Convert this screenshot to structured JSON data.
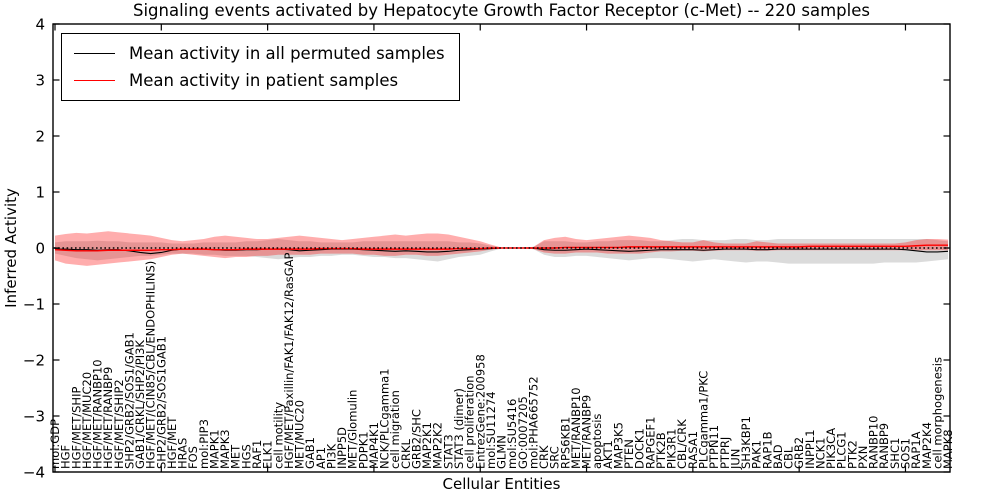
{
  "title": "Signaling events activated by Hepatocyte Growth Factor Receptor (c-Met) -- 220 samples",
  "axes": {
    "ylabel": "Inferred Activity",
    "xlabel": "Cellular Entities",
    "yticks": [
      "4",
      "3",
      "2",
      "1",
      "0",
      "−1",
      "−2",
      "−3",
      "−4"
    ],
    "ytick_values": [
      4,
      3,
      2,
      1,
      0,
      -1,
      -2,
      -3,
      -4
    ]
  },
  "legend": {
    "items": [
      {
        "label": "Mean activity in all permuted samples",
        "color": "#000000"
      },
      {
        "label": "Mean activity in patient samples",
        "color": "#ff0000"
      }
    ]
  },
  "colors": {
    "permuted_line": "#000000",
    "patient_line": "#ff0000",
    "permuted_band": "#999999",
    "patient_band": "#ff0000",
    "zero_line": "#000000",
    "axis": "#000000"
  },
  "chart_data": {
    "type": "line",
    "title": "Signaling events activated by Hepatocyte Growth Factor Receptor (c-Met) -- 220 samples",
    "xlabel": "Cellular Entities",
    "ylabel": "Inferred Activity",
    "ylim": [
      -4,
      4
    ],
    "grid": false,
    "legend_position": "upper left",
    "categories": [
      "mol:GDP",
      "HGF",
      "HGF/MET/SHIP",
      "HGF/MET/MUC20",
      "HGF/MET/RANBP10",
      "HGF/MET/RANBP9",
      "HGF/MET/SHIP2",
      "SHP2/GRB2/SOS1/GAB1",
      "GAB1/CRKL/SHP2/PI3K",
      "HGF/MET/(CIN85/CBL/ENDOPHILINS)",
      "SHP2/GRB2/SOS1GAB1",
      "HGF/MET",
      "HRAS",
      "FOS",
      "mol:PIP3",
      "MAPK1",
      "MAPK3",
      "MET",
      "HGS",
      "RAF1",
      "ELK1",
      "cell motility",
      "HGF/MET/Paxillin/FAK1/FAK12/RasGAP",
      "MET/MUC20",
      "GAB1",
      "AP1",
      "PI3K",
      "INPP5D",
      "MET/Glomulin",
      "PDPK1",
      "MAP4K1",
      "NCK/PLCgamma1",
      "cell migration",
      "CRKL",
      "GRB2/SHC",
      "MAP2K1",
      "MAP2K2",
      "STAT3",
      "STAT3 (dimer)",
      "cell proliferation",
      "EntrezGene:200958",
      "mol:SU11274",
      "GLMN",
      "mol:SU5416",
      "GO:0007205",
      "mol:PHA665752",
      "CRK",
      "SRC",
      "RPS6KB1",
      "MET/RANBP10",
      "MET/RANBP9",
      "apoptosis",
      "AKT1",
      "MAP3K5",
      "PTEN",
      "DOCK1",
      "RAPGEF1",
      "PTK2B",
      "PIK3R1",
      "CBL/CRK",
      "RASA1",
      "PLCgamma1/PKC",
      "PTPN11",
      "PTPRJ",
      "JUN",
      "SH3KBP1",
      "PAK1",
      "RAP1B",
      "BAD",
      "CBL",
      "GRB2",
      "INPPL1",
      "NCK1",
      "PIK3CA",
      "PLCG1",
      "PTK2",
      "PXN",
      "RANBP10",
      "RANBP9",
      "SHC1",
      "SOS1",
      "RAP1A",
      "MAP2K4",
      "cell morphogenesis",
      "MAPK8"
    ],
    "series": [
      {
        "name": "Mean activity in all permuted samples",
        "color": "#000000",
        "values": [
          -0.02,
          -0.02,
          -0.03,
          -0.03,
          -0.04,
          -0.03,
          -0.03,
          -0.05,
          -0.08,
          -0.1,
          -0.08,
          -0.04,
          -0.02,
          -0.02,
          -0.02,
          -0.03,
          -0.04,
          -0.04,
          -0.03,
          -0.03,
          -0.02,
          -0.02,
          -0.03,
          -0.05,
          -0.04,
          -0.03,
          -0.02,
          -0.02,
          -0.02,
          -0.03,
          -0.04,
          -0.05,
          -0.06,
          -0.05,
          -0.06,
          -0.07,
          -0.07,
          -0.06,
          -0.04,
          -0.03,
          -0.02,
          -0.01,
          0,
          0,
          0,
          0,
          -0.03,
          -0.04,
          -0.04,
          -0.03,
          -0.02,
          -0.03,
          -0.04,
          -0.05,
          -0.06,
          -0.05,
          -0.04,
          -0.03,
          -0.03,
          -0.03,
          -0.03,
          -0.04,
          -0.03,
          -0.02,
          -0.02,
          -0.02,
          -0.03,
          -0.03,
          -0.02,
          -0.02,
          -0.02,
          -0.02,
          -0.02,
          -0.02,
          -0.02,
          -0.02,
          -0.02,
          -0.02,
          -0.02,
          -0.02,
          -0.03,
          -0.05,
          -0.07,
          -0.07,
          -0.06
        ]
      },
      {
        "name": "Mean activity in patient samples",
        "color": "#ff0000",
        "values": [
          -0.03,
          -0.04,
          -0.05,
          -0.05,
          -0.05,
          -0.04,
          -0.04,
          -0.04,
          -0.04,
          -0.04,
          -0.03,
          -0.03,
          -0.02,
          -0.02,
          -0.02,
          -0.03,
          -0.03,
          -0.03,
          -0.02,
          -0.02,
          -0.02,
          -0.02,
          -0.02,
          -0.02,
          -0.02,
          -0.01,
          -0.01,
          -0.01,
          -0.01,
          -0.02,
          -0.02,
          -0.02,
          -0.02,
          -0.02,
          -0.02,
          -0.02,
          -0.02,
          -0.02,
          -0.01,
          -0.01,
          -0.01,
          0,
          0,
          0,
          0,
          0,
          0,
          0,
          0.01,
          0.01,
          0.01,
          0.01,
          0.01,
          0.01,
          0.02,
          0.02,
          0.02,
          0.02,
          0.02,
          0.02,
          0.02,
          0.02,
          0.02,
          0.02,
          0.02,
          0.02,
          0.02,
          0.02,
          0.02,
          0.02,
          0.02,
          0.03,
          0.03,
          0.03,
          0.03,
          0.03,
          0.03,
          0.03,
          0.03,
          0.03,
          0.03,
          0.04,
          0.05,
          0.05,
          0.05
        ]
      }
    ],
    "bands": [
      {
        "name": "permuted-samples-spread",
        "color": "#000000",
        "opacity": 0.14,
        "upper": [
          0.1,
          0.12,
          0.12,
          0.12,
          0.13,
          0.12,
          0.12,
          0.1,
          0.1,
          0.1,
          0.1,
          0.08,
          0.08,
          0.08,
          0.1,
          0.1,
          0.1,
          0.1,
          0.12,
          0.12,
          0.14,
          0.16,
          0.14,
          0.12,
          0.12,
          0.1,
          0.1,
          0.1,
          0.1,
          0.12,
          0.12,
          0.12,
          0.12,
          0.12,
          0.12,
          0.12,
          0.12,
          0.12,
          0.1,
          0.1,
          0.08,
          0.04,
          0.01,
          0.01,
          0.01,
          0.02,
          0.12,
          0.12,
          0.12,
          0.1,
          0.1,
          0.12,
          0.12,
          0.14,
          0.14,
          0.14,
          0.12,
          0.12,
          0.14,
          0.16,
          0.16,
          0.14,
          0.14,
          0.14,
          0.16,
          0.16,
          0.14,
          0.14,
          0.16,
          0.16,
          0.16,
          0.16,
          0.16,
          0.16,
          0.16,
          0.16,
          0.16,
          0.16,
          0.16,
          0.16,
          0.16,
          0.16,
          0.16,
          0.14,
          0.12
        ],
        "lower": [
          -0.1,
          -0.14,
          -0.18,
          -0.2,
          -0.22,
          -0.2,
          -0.18,
          -0.16,
          -0.14,
          -0.14,
          -0.12,
          -0.1,
          -0.1,
          -0.1,
          -0.12,
          -0.12,
          -0.14,
          -0.14,
          -0.14,
          -0.16,
          -0.18,
          -0.2,
          -0.18,
          -0.16,
          -0.16,
          -0.14,
          -0.14,
          -0.12,
          -0.12,
          -0.14,
          -0.16,
          -0.16,
          -0.18,
          -0.18,
          -0.2,
          -0.22,
          -0.24,
          -0.2,
          -0.16,
          -0.14,
          -0.12,
          -0.06,
          -0.01,
          -0.01,
          -0.01,
          -0.02,
          -0.12,
          -0.16,
          -0.16,
          -0.14,
          -0.14,
          -0.16,
          -0.18,
          -0.2,
          -0.22,
          -0.2,
          -0.18,
          -0.18,
          -0.2,
          -0.22,
          -0.24,
          -0.22,
          -0.2,
          -0.22,
          -0.24,
          -0.26,
          -0.24,
          -0.24,
          -0.26,
          -0.28,
          -0.28,
          -0.28,
          -0.28,
          -0.28,
          -0.28,
          -0.28,
          -0.28,
          -0.28,
          -0.26,
          -0.26,
          -0.26,
          -0.26,
          -0.24,
          -0.22,
          -0.2
        ]
      },
      {
        "name": "patient-samples-spread",
        "color": "#ff0000",
        "opacity": 0.32,
        "upper": [
          0.22,
          0.25,
          0.27,
          0.26,
          0.28,
          0.3,
          0.28,
          0.26,
          0.24,
          0.22,
          0.18,
          0.14,
          0.12,
          0.14,
          0.16,
          0.2,
          0.22,
          0.2,
          0.18,
          0.16,
          0.16,
          0.18,
          0.2,
          0.22,
          0.2,
          0.18,
          0.16,
          0.14,
          0.16,
          0.18,
          0.2,
          0.22,
          0.24,
          0.22,
          0.24,
          0.26,
          0.26,
          0.24,
          0.2,
          0.16,
          0.12,
          0.06,
          0.01,
          0.01,
          0.01,
          0.02,
          0.14,
          0.18,
          0.2,
          0.16,
          0.14,
          0.16,
          0.18,
          0.2,
          0.22,
          0.2,
          0.18,
          0.14,
          0.12,
          0.1,
          0.1,
          0.14,
          0.1,
          0.08,
          0.08,
          0.08,
          0.12,
          0.1,
          0.08,
          0.08,
          0.08,
          0.08,
          0.08,
          0.08,
          0.08,
          0.08,
          0.08,
          0.08,
          0.08,
          0.08,
          0.1,
          0.14,
          0.16,
          0.16,
          0.15
        ],
        "lower": [
          -0.22,
          -0.28,
          -0.3,
          -0.32,
          -0.3,
          -0.28,
          -0.26,
          -0.24,
          -0.22,
          -0.2,
          -0.16,
          -0.12,
          -0.1,
          -0.12,
          -0.14,
          -0.16,
          -0.18,
          -0.16,
          -0.16,
          -0.14,
          -0.14,
          -0.12,
          -0.12,
          -0.12,
          -0.12,
          -0.1,
          -0.1,
          -0.1,
          -0.1,
          -0.12,
          -0.12,
          -0.14,
          -0.14,
          -0.12,
          -0.12,
          -0.14,
          -0.14,
          -0.12,
          -0.1,
          -0.08,
          -0.06,
          -0.03,
          -0.01,
          -0.01,
          -0.01,
          -0.02,
          -0.08,
          -0.1,
          -0.1,
          -0.08,
          -0.08,
          -0.08,
          -0.1,
          -0.1,
          -0.1,
          -0.1,
          -0.08,
          -0.06,
          -0.06,
          -0.05,
          -0.05,
          -0.06,
          -0.05,
          -0.04,
          -0.04,
          -0.04,
          -0.05,
          -0.05,
          -0.04,
          -0.04,
          -0.04,
          -0.04,
          -0.04,
          -0.04,
          -0.04,
          -0.04,
          -0.04,
          -0.04,
          -0.04,
          -0.04,
          -0.04,
          -0.04,
          -0.04,
          -0.04,
          -0.04
        ]
      }
    ],
    "zero_line": {
      "value": 0,
      "style": "dotted",
      "color": "#000000"
    }
  }
}
